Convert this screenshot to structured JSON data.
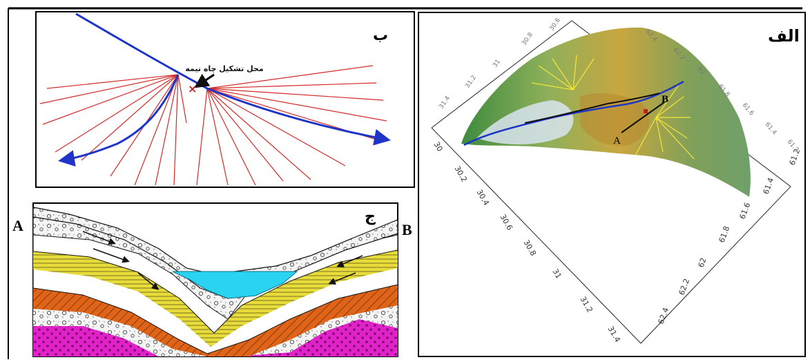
{
  "panels": {
    "alef": {
      "label": "الف",
      "point_a": "A",
      "point_b": "B"
    },
    "be": {
      "label": "ب",
      "annotation": "محل تشکیل چاه نیمه"
    },
    "jim": {
      "label": "ج",
      "left_end": "A",
      "right_end": "B"
    }
  },
  "axes": {
    "lat_ticks": [
      "30",
      "30.2",
      "30.4",
      "30.6",
      "30.8",
      "31",
      "31.2",
      "31.4"
    ],
    "lon_ticks": [
      "61.2",
      "61.4",
      "61.6",
      "61.8",
      "62",
      "62.2",
      "62.4"
    ],
    "top_lat_ticks": [
      "31.4",
      "31.2",
      "31",
      "30.8",
      "30.6"
    ],
    "top_lon_ticks": [
      "62.4",
      "62.2",
      "62",
      "61.8",
      "61.6",
      "61.4",
      "61.2"
    ]
  },
  "colors": {
    "river": "#1f35c8",
    "flowline": "#d42a2a",
    "water": "#2ad4f0",
    "yellow_layer": "#e8dc3a",
    "orange_layer": "#e06418",
    "magenta_layer": "#e022c8"
  }
}
